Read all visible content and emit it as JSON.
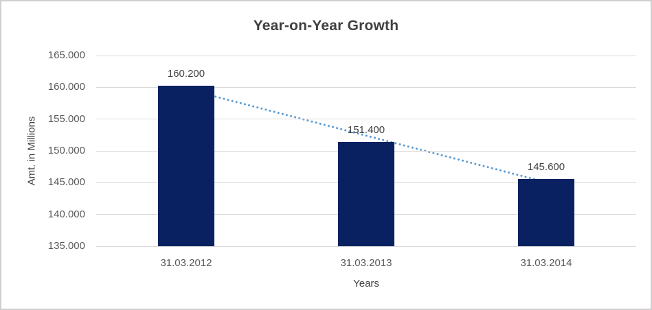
{
  "chart_data": {
    "type": "bar",
    "title": "Year-on-Year Growth",
    "xlabel": "Years",
    "ylabel": "Amt. in Millions",
    "categories": [
      "31.03.2012",
      "31.03.2013",
      "31.03.2014"
    ],
    "values": [
      160200,
      151400,
      145600
    ],
    "data_labels": [
      "160.200",
      "151.400",
      "145.600"
    ],
    "ylim": [
      135000,
      165000
    ],
    "y_ticks": [
      165000,
      160000,
      155000,
      150000,
      145000,
      140000,
      135000
    ],
    "y_tick_labels": [
      "165.000",
      "160.000",
      "155.000",
      "150.000",
      "145.000",
      "140.000",
      "135.000"
    ],
    "grid": true,
    "legend": "none",
    "colors": {
      "bar": "#0A2161",
      "gridline": "#D9D9D9",
      "title_text": "#404040",
      "tick_text": "#595959",
      "data_label_text": "#404040",
      "trendline": "#5B9BD5",
      "frame_border": "#D0CECE"
    },
    "trendline": {
      "type": "linear",
      "style": "dotted",
      "color": "#5B9BD5",
      "fitted_endpoints": [
        159733,
        145067
      ]
    }
  }
}
